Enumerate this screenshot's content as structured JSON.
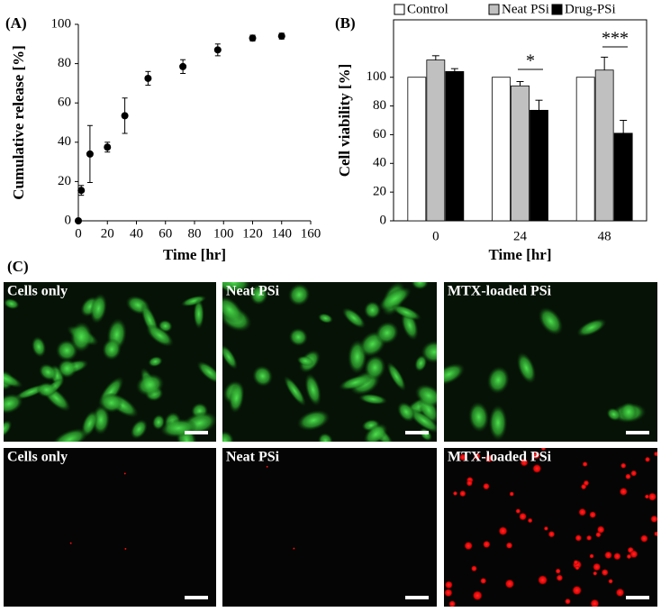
{
  "chart_data": [
    {
      "type": "scatter",
      "title": "(A)",
      "xlabel": "Time [hr]",
      "ylabel": "Cumulative release [%]",
      "x": [
        0,
        2,
        8,
        20,
        32,
        48,
        72,
        96,
        120,
        140
      ],
      "values": [
        0,
        15.5,
        34,
        37.5,
        53.5,
        72.5,
        78.5,
        87,
        93,
        94
      ],
      "errors": [
        null,
        2.5,
        14.5,
        2.5,
        9,
        3.5,
        3.5,
        3,
        1.5,
        1.5
      ],
      "color": "#000000",
      "xlim": [
        0,
        160
      ],
      "xticks": [
        0,
        20,
        40,
        60,
        80,
        100,
        120,
        140,
        160
      ],
      "ylim": [
        0,
        100
      ],
      "yticks": [
        0,
        20,
        40,
        60,
        80,
        100
      ]
    },
    {
      "type": "bar",
      "title": "(B)",
      "xlabel": "Time [hr]",
      "ylabel": "Cell viability [%]",
      "categories": [
        "0",
        "24",
        "48"
      ],
      "series": [
        {
          "name": "Control",
          "color": "#ffffff",
          "values": [
            100,
            100,
            100
          ],
          "errors": [
            null,
            null,
            null
          ]
        },
        {
          "name": "Neat PSi",
          "color": "#c0c0c0",
          "values": [
            112,
            94,
            105
          ],
          "errors": [
            3,
            3,
            9
          ]
        },
        {
          "name": "Drug-PSi",
          "color": "#000000",
          "values": [
            104,
            77,
            61
          ],
          "errors": [
            2,
            7,
            9
          ]
        }
      ],
      "annotations": [
        {
          "text": "*"
        },
        {
          "text": "***"
        }
      ],
      "ylim": [
        0,
        140
      ],
      "yticks": [
        0,
        20,
        40,
        60,
        80,
        100
      ]
    }
  ],
  "panel_c": {
    "label": "(C)",
    "images": [
      "Cells only",
      "Neat PSi",
      "MTX-loaded PSi",
      "Cells only",
      "Neat PSi",
      "MTX-loaded PSi"
    ]
  }
}
